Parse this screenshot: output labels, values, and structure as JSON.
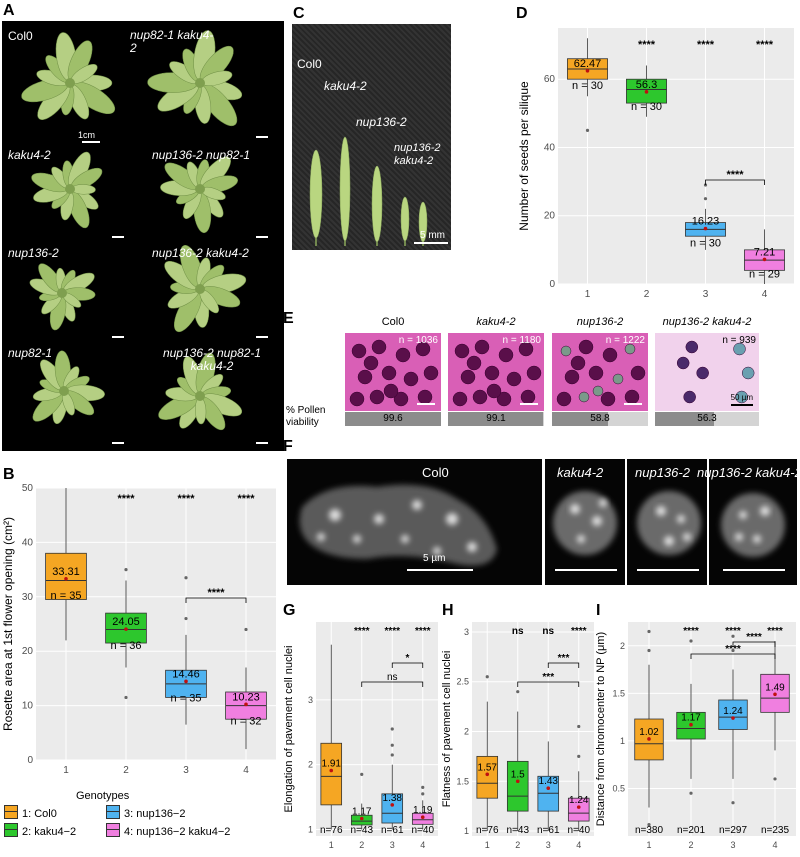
{
  "panels": {
    "A": {
      "label": "A",
      "genotype_labels": [
        "Col0",
        "nup82-1 kaku4-2",
        "kaku4-2",
        "nup136-2 nup82-1",
        "nup136-2",
        "nup136-2 kaku4-2",
        "nup82-1",
        "nup136-2 nup82-1 kaku4-2"
      ],
      "scale": "1cm"
    },
    "C": {
      "label": "C",
      "labels": [
        "Col0",
        "kaku4-2",
        "nup136-2",
        "nup136-2 kaku4-2"
      ],
      "scale": "5 mm"
    },
    "E": {
      "label": "E",
      "row_label": "% Pollen viability",
      "scale": "50 µm",
      "samples": [
        {
          "name": "Col0",
          "n": "n = 1036",
          "viability": 99.6,
          "viability_text": "99.6"
        },
        {
          "name": "kaku4-2",
          "n": "n = 1180",
          "viability": 99.1,
          "viability_text": "99.1"
        },
        {
          "name": "nup136-2",
          "n": "n = 1222",
          "viability": 58.8,
          "viability_text": "58.8"
        },
        {
          "name": "nup136-2 kaku4-2",
          "n": "n = 939",
          "viability": 56.3,
          "viability_text": "56.3"
        }
      ]
    },
    "F": {
      "label": "F",
      "labels": [
        "Col0",
        "kaku4-2",
        "nup136-2",
        "nup136-2 kaku4-2"
      ],
      "scale": "5 µm"
    }
  },
  "legend": {
    "title": "Genotypes",
    "items": [
      {
        "label": "1: Col0",
        "color": "#F5A623"
      },
      {
        "label": "2: kaku4−2",
        "color": "#2DC72D"
      },
      {
        "label": "3: nup136−2",
        "color": "#4FB3F0"
      },
      {
        "label": "4: nup136−2 kaku4−2",
        "color": "#F07FE0"
      }
    ]
  },
  "chart_data": [
    {
      "panel": "B",
      "type": "box",
      "ylabel": "Rosette area at 1st flower opening (cm²)",
      "categories": [
        "1",
        "2",
        "3",
        "4"
      ],
      "ylim": [
        0,
        50
      ],
      "yticks": [
        0,
        10,
        20,
        30,
        40,
        50
      ],
      "means": [
        33.31,
        24.05,
        14.46,
        10.23
      ],
      "mean_labels": [
        "33.31",
        "24.05",
        "14.46",
        "10.23"
      ],
      "n": [
        "n = 35",
        "n = 36",
        "n = 35",
        "n = 32"
      ],
      "boxes": [
        {
          "min": 22,
          "q1": 29.5,
          "median": 33,
          "q3": 38,
          "max": 50,
          "outliers": []
        },
        {
          "min": 17,
          "q1": 21.5,
          "median": 24,
          "q3": 27,
          "max": 33,
          "outliers": [
            35,
            11.5
          ]
        },
        {
          "min": 6.5,
          "q1": 11.5,
          "median": 14,
          "q3": 16.5,
          "max": 23,
          "outliers": [
            33.5,
            26
          ]
        },
        {
          "min": 2,
          "q1": 7.5,
          "median": 10,
          "q3": 12.5,
          "max": 17,
          "outliers": [
            24
          ]
        }
      ],
      "significance": [
        "",
        "****",
        "****",
        "****"
      ],
      "brackets": [
        {
          "from": 3,
          "to": 4,
          "label": "****"
        }
      ]
    },
    {
      "panel": "D",
      "type": "box",
      "ylabel": "Number of seeds per silique",
      "categories": [
        "1",
        "2",
        "3",
        "4"
      ],
      "ylim": [
        0,
        75
      ],
      "yticks": [
        0,
        20,
        40,
        60
      ],
      "means": [
        62.47,
        56.3,
        16.23,
        7.21
      ],
      "mean_labels": [
        "62.47",
        "56.3",
        "16.23",
        "7.21"
      ],
      "n": [
        "n = 30",
        "n = 30",
        "n = 30",
        "n = 29"
      ],
      "boxes": [
        {
          "min": 55,
          "q1": 60,
          "median": 63,
          "q3": 66,
          "max": 72,
          "outliers": [
            45
          ]
        },
        {
          "min": 49,
          "q1": 53,
          "median": 57,
          "q3": 60,
          "max": 64,
          "outliers": []
        },
        {
          "min": 10,
          "q1": 14,
          "median": 16,
          "q3": 18,
          "max": 22,
          "outliers": [
            29,
            25
          ]
        },
        {
          "min": 0,
          "q1": 4,
          "median": 7,
          "q3": 10,
          "max": 16,
          "outliers": []
        }
      ],
      "significance": [
        "",
        "****",
        "****",
        "****"
      ],
      "brackets": [
        {
          "from": 3,
          "to": 4,
          "label": "****"
        }
      ]
    },
    {
      "panel": "G",
      "type": "box",
      "ylabel": "Elongation of pavement cell nuclei",
      "categories": [
        "1",
        "2",
        "3",
        "4"
      ],
      "ylim": [
        0.9,
        4.2
      ],
      "yticks": [
        1,
        2,
        3
      ],
      "means": [
        1.91,
        1.17,
        1.38,
        1.19
      ],
      "mean_labels": [
        "1.91",
        "1.17",
        "1.38",
        "1.19"
      ],
      "n": [
        "n=76",
        "n=43",
        "n=61",
        "n=40"
      ],
      "boxes": [
        {
          "min": 1.0,
          "q1": 1.38,
          "median": 1.82,
          "q3": 2.33,
          "max": 3.85,
          "outliers": []
        },
        {
          "min": 1.0,
          "q1": 1.07,
          "median": 1.13,
          "q3": 1.22,
          "max": 1.4,
          "outliers": [
            1.85
          ]
        },
        {
          "min": 1.0,
          "q1": 1.1,
          "median": 1.25,
          "q3": 1.55,
          "max": 2.0,
          "outliers": [
            2.55,
            2.3,
            2.15
          ]
        },
        {
          "min": 1.0,
          "q1": 1.08,
          "median": 1.15,
          "q3": 1.25,
          "max": 1.45,
          "outliers": [
            1.65,
            1.55
          ]
        }
      ],
      "significance": [
        "",
        "****",
        "****",
        "****"
      ],
      "brackets": [
        {
          "from": 2,
          "to": 4,
          "label": "ns"
        },
        {
          "from": 3,
          "to": 4,
          "label": "*"
        }
      ]
    },
    {
      "panel": "H",
      "type": "box",
      "ylabel": "Flatness of pavement cell nuclei",
      "categories": [
        "1",
        "2",
        "3",
        "4"
      ],
      "ylim": [
        0.95,
        3.1
      ],
      "yticks": [
        1.0,
        1.5,
        2.0,
        2.5,
        3.0
      ],
      "means": [
        1.57,
        1.5,
        1.43,
        1.24
      ],
      "mean_labels": [
        "1.57",
        "1.5",
        "1.43",
        "1.24"
      ],
      "n": [
        "n=76",
        "n=43",
        "n=61",
        "n=40"
      ],
      "boxes": [
        {
          "min": 1.0,
          "q1": 1.33,
          "median": 1.48,
          "q3": 1.75,
          "max": 2.3,
          "outliers": [
            2.55
          ]
        },
        {
          "min": 1.0,
          "q1": 1.2,
          "median": 1.35,
          "q3": 1.7,
          "max": 2.2,
          "outliers": [
            2.4
          ]
        },
        {
          "min": 1.0,
          "q1": 1.2,
          "median": 1.38,
          "q3": 1.55,
          "max": 1.9,
          "outliers": []
        },
        {
          "min": 1.0,
          "q1": 1.1,
          "median": 1.18,
          "q3": 1.33,
          "max": 1.6,
          "outliers": [
            1.75,
            2.05
          ]
        }
      ],
      "significance": [
        "",
        "ns",
        "ns",
        "****"
      ],
      "brackets": [
        {
          "from": 2,
          "to": 4,
          "label": "***"
        },
        {
          "from": 3,
          "to": 4,
          "label": "***"
        }
      ]
    },
    {
      "panel": "I",
      "type": "box",
      "ylabel": "Distance from chromocenter to NP (μm)",
      "categories": [
        "1",
        "2",
        "3",
        "4"
      ],
      "ylim": [
        0.0,
        2.25
      ],
      "yticks": [
        0.5,
        1.0,
        1.5,
        2.0
      ],
      "means": [
        1.02,
        1.17,
        1.24,
        1.49
      ],
      "mean_labels": [
        "1.02",
        "1.17",
        "1.24",
        "1.49"
      ],
      "n": [
        "n=380",
        "n=201",
        "n=297",
        "n=235"
      ],
      "boxes": [
        {
          "min": 0.3,
          "q1": 0.8,
          "median": 0.97,
          "q3": 1.23,
          "max": 1.8,
          "outliers": [
            2.15,
            1.95,
            0.12
          ]
        },
        {
          "min": 0.6,
          "q1": 1.02,
          "median": 1.13,
          "q3": 1.3,
          "max": 1.6,
          "outliers": [
            2.05,
            0.45
          ]
        },
        {
          "min": 0.6,
          "q1": 1.12,
          "median": 1.25,
          "q3": 1.43,
          "max": 1.75,
          "outliers": [
            2.1,
            1.95,
            0.35
          ]
        },
        {
          "min": 0.9,
          "q1": 1.3,
          "median": 1.45,
          "q3": 1.7,
          "max": 2.05,
          "outliers": [
            0.6
          ]
        }
      ],
      "significance": [
        "",
        "****",
        "****",
        "****"
      ],
      "brackets": [
        {
          "from": 2,
          "to": 4,
          "label": "****"
        },
        {
          "from": 3,
          "to": 4,
          "label": "****"
        }
      ]
    }
  ]
}
